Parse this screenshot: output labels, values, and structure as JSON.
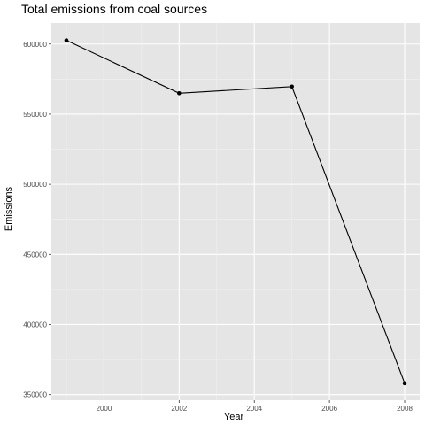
{
  "chart_data": {
    "type": "line",
    "title": "Total emissions from coal sources",
    "xlabel": "Year",
    "ylabel": "Emissions",
    "x": [
      1999,
      2002,
      2005,
      2008
    ],
    "series": [
      {
        "values": [
          602624,
          564940,
          569655,
          358084
        ]
      }
    ],
    "xlim": [
      1998.6,
      2008.4
    ],
    "ylim": [
      346000,
      615000
    ],
    "x_ticks": [
      2000,
      2002,
      2004,
      2006,
      2008
    ],
    "x_tick_labels": [
      "2000",
      "2002",
      "2004",
      "2006",
      "2008"
    ],
    "y_ticks": [
      350000,
      400000,
      450000,
      500000,
      550000,
      600000
    ],
    "y_tick_labels": [
      "350000",
      "400000",
      "450000",
      "500000",
      "550000",
      "600000"
    ],
    "grid": true,
    "legend": "none",
    "colors": {
      "panel": "#e5e5e5",
      "grid_major": "#ffffff",
      "grid_minor": "#f0f0f0",
      "line": "#000000",
      "tick_label": "#4d4d4d"
    }
  }
}
